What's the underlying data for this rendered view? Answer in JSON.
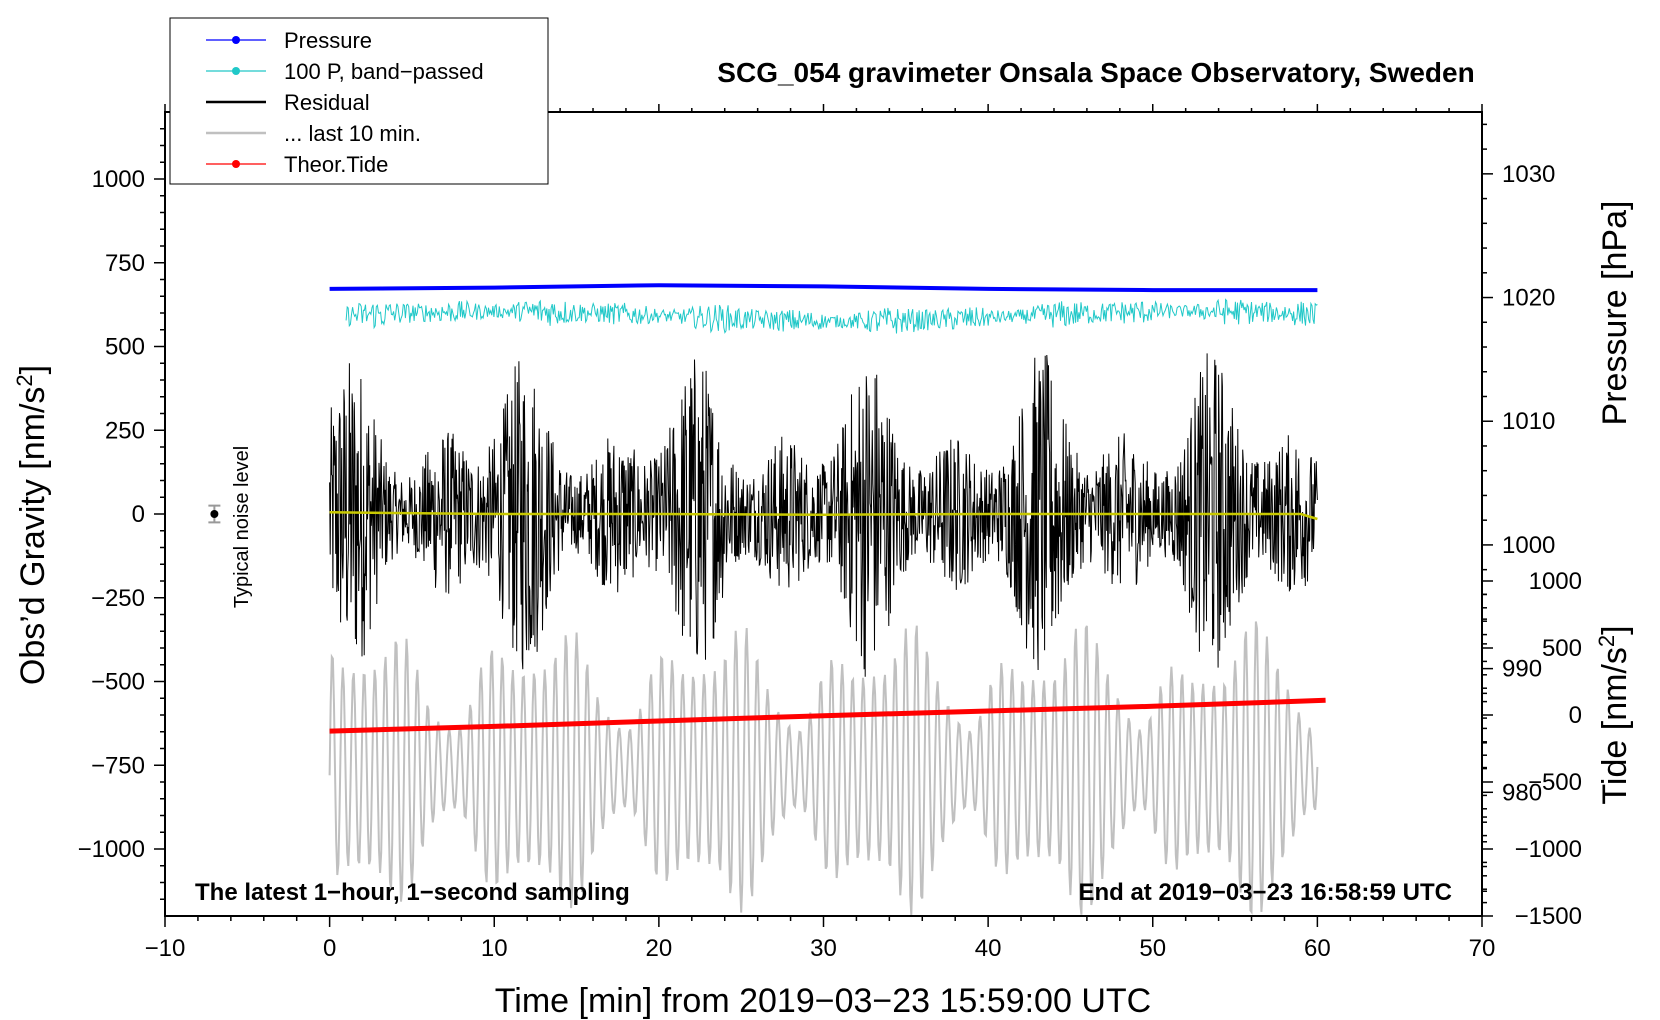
{
  "chart_data": {
    "type": "line",
    "title": "SCG_054 gravimeter Onsala Space Observatory, Sweden",
    "xlabel": "Time [min] from 2019−03−23 15:59:00 UTC",
    "ylabel_left_main": "Obs’d Gravity [nm/s",
    "ylabel_left_sup": "2",
    "ylabel_left_end": "]",
    "ylabel_right_top": "Pressure [hPa]",
    "ylabel_right_bottom_main": "Tide [nm/s",
    "ylabel_right_bottom_sup": "2",
    "ylabel_right_bottom_end": "]",
    "xlim": [
      -10,
      70
    ],
    "ylim_left": [
      -1200,
      1200
    ],
    "ylim_pressure": [
      970,
      1035
    ],
    "ylim_tide": [
      -1500,
      1500
    ],
    "x_ticks": [
      -10,
      0,
      10,
      20,
      30,
      40,
      50,
      60,
      70
    ],
    "x_tick_labels": [
      "−10",
      "0",
      "10",
      "20",
      "30",
      "40",
      "50",
      "60",
      "70"
    ],
    "y_ticks_left": [
      1000,
      750,
      500,
      250,
      0,
      -250,
      -500,
      -750,
      -1000
    ],
    "y_tick_labels_left": [
      "1000",
      "750",
      "500",
      "250",
      "0",
      "−250",
      "−500",
      "−750",
      "−1000"
    ],
    "y_ticks_pressure": [
      980,
      990,
      1000,
      1010,
      1020,
      1030
    ],
    "y_tick_labels_pressure": [
      "980",
      "990",
      "1000",
      "1010",
      "1020",
      "1030"
    ],
    "y_ticks_tide": [
      1000,
      500,
      0,
      -500,
      -1000,
      -1500
    ],
    "y_tick_labels_tide": [
      "1000",
      "500",
      "0",
      "−500",
      "−1000",
      "−1500"
    ],
    "note_left": "The latest 1−hour, 1−second sampling",
    "note_right": "End at 2019−03−23 16:58:59 UTC",
    "noise_label": "Typical noise level",
    "noise_marker": {
      "x": -7,
      "y": 0,
      "err": 25
    },
    "legend": [
      {
        "label": "Pressure",
        "color": "#0000ff",
        "marker": true
      },
      {
        "label": "100 P, band−passed",
        "color": "#20c8c8",
        "marker": true
      },
      {
        "label": "Residual",
        "color": "#000000",
        "marker": false
      },
      {
        "label": "... last 10 min.",
        "color": "#c0c0c0",
        "marker": false
      },
      {
        "label": "Theor.Tide",
        "color": "#ff0000",
        "marker": true
      }
    ],
    "series": [
      {
        "name": "Pressure",
        "axis": "pressure",
        "color": "#0000ff",
        "x": [
          0,
          10,
          20,
          30,
          40,
          50,
          60
        ],
        "values": [
          1020.7,
          1020.8,
          1021.0,
          1020.9,
          1020.7,
          1020.6,
          1020.6
        ]
      },
      {
        "name": "100 P, band−passed",
        "axis": "left",
        "color": "#20c8c8",
        "x_start": 1,
        "x_end": 60,
        "baseline": 590,
        "amp_min": 15,
        "amp_max": 65
      },
      {
        "name": "Residual",
        "axis": "left",
        "color": "#000000",
        "x_start": 0,
        "x_end": 60,
        "baseline": 0,
        "amp_min": 80,
        "amp_max": 500
      },
      {
        "name": "... last 10 min.",
        "axis": "left",
        "color": "#c0c0c0",
        "x_start": 0,
        "x_end": 60,
        "baseline": -760,
        "amp_min": 60,
        "amp_max": 450
      },
      {
        "name": "Residual smoothed",
        "axis": "left",
        "color": "#c8c800",
        "x": [
          0,
          10,
          20,
          30,
          40,
          50,
          59,
          60
        ],
        "values": [
          5,
          0,
          0,
          -2,
          0,
          0,
          0,
          -15
        ]
      },
      {
        "name": "Theor.Tide",
        "axis": "tide",
        "color": "#ff0000",
        "x": [
          0,
          10,
          20,
          30,
          40,
          50,
          60.5
        ],
        "values": [
          -120,
          -85,
          -45,
          -5,
          30,
          65,
          110
        ]
      }
    ]
  }
}
